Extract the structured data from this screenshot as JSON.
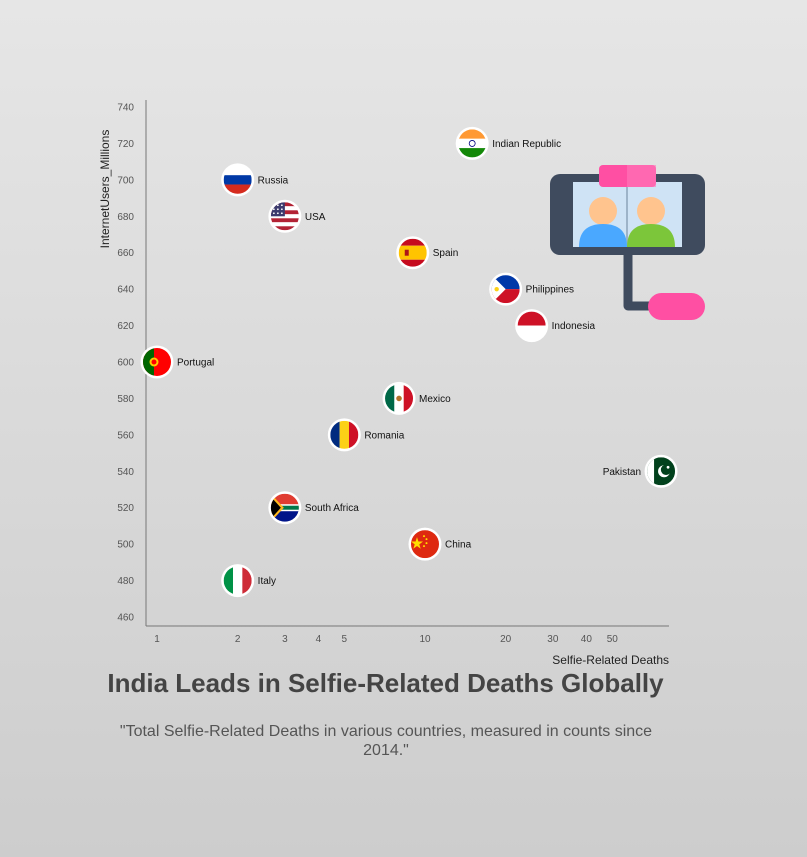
{
  "title": "India Leads in Selfie-Related Deaths Globally",
  "subtitle": "\"Total Selfie-Related Deaths in various countries, measured in counts since 2014.\"",
  "chart_data": {
    "type": "scatter",
    "xlabel": "Selfie-Related Deaths",
    "ylabel": "InternetUsers_Millions",
    "xscale": "log",
    "xlim": [
      0.9,
      90
    ],
    "ylim": [
      460,
      740
    ],
    "xticks": [
      1,
      2,
      3,
      4,
      5,
      10,
      20,
      30,
      40,
      50
    ],
    "yticks": [
      460,
      480,
      500,
      520,
      540,
      560,
      580,
      600,
      620,
      640,
      660,
      680,
      700,
      720,
      740
    ],
    "grid": false,
    "points": [
      {
        "label": "Indian Republic",
        "x": 15,
        "y": 720,
        "flag": "india-flag-icon",
        "label_side": "right"
      },
      {
        "label": "Russia",
        "x": 2,
        "y": 700,
        "flag": "russia-flag-icon",
        "label_side": "right"
      },
      {
        "label": "USA",
        "x": 3,
        "y": 680,
        "flag": "usa-flag-icon",
        "label_side": "right"
      },
      {
        "label": "Spain",
        "x": 9,
        "y": 660,
        "flag": "spain-flag-icon",
        "label_side": "right"
      },
      {
        "label": "Philippines",
        "x": 20,
        "y": 640,
        "flag": "philippines-flag-icon",
        "label_side": "right"
      },
      {
        "label": "Indonesia",
        "x": 25,
        "y": 620,
        "flag": "indonesia-flag-icon",
        "label_side": "right"
      },
      {
        "label": "Portugal",
        "x": 1,
        "y": 600,
        "flag": "portugal-flag-icon",
        "label_side": "right"
      },
      {
        "label": "Mexico",
        "x": 8,
        "y": 580,
        "flag": "mexico-flag-icon",
        "label_side": "right"
      },
      {
        "label": "Romania",
        "x": 5,
        "y": 560,
        "flag": "romania-flag-icon",
        "label_side": "right"
      },
      {
        "label": "Pakistan",
        "x": 76,
        "y": 540,
        "flag": "pakistan-flag-icon",
        "label_side": "left"
      },
      {
        "label": "South Africa",
        "x": 3,
        "y": 520,
        "flag": "south-africa-flag-icon",
        "label_side": "right"
      },
      {
        "label": "China",
        "x": 10,
        "y": 500,
        "flag": "china-flag-icon",
        "label_side": "right"
      },
      {
        "label": "Italy",
        "x": 2,
        "y": 480,
        "flag": "italy-flag-icon",
        "label_side": "right"
      }
    ]
  },
  "decoration": {
    "icon": "selfie-stick-phone-icon",
    "colors": {
      "phone": "#3f4b5e",
      "pink": "#ff4fa3",
      "screen": "#cfe3f5",
      "person_left": "#4aa8ff",
      "person_right": "#7cc63a",
      "skin": "#ffc48e"
    }
  }
}
